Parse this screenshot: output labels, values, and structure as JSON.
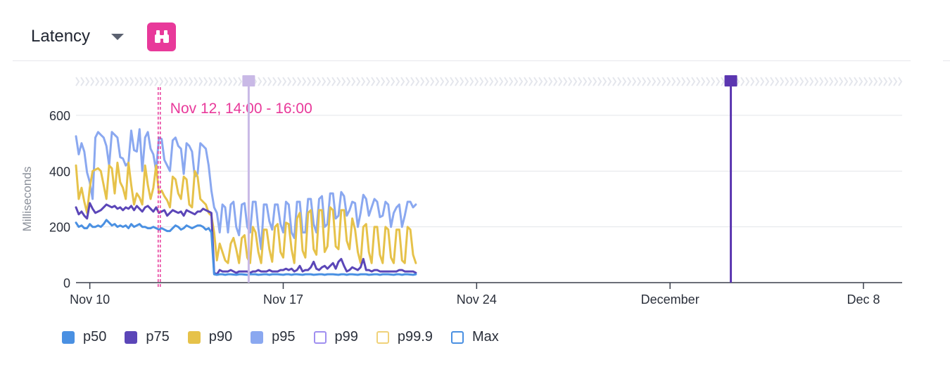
{
  "header": {
    "title": "Latency"
  },
  "annotation": {
    "label": "Nov 12, 14:00 - 16:00"
  },
  "colors": {
    "p50": "#4a90e2",
    "p75": "#5b46b8",
    "p90": "#e6c24a",
    "p95": "#8aa8f0",
    "p99": "#a08ff0",
    "p99_9": "#f0d27a",
    "max": "#4a90e2",
    "annotation": "#e8399a",
    "marker": "#5b36b0"
  },
  "legend": [
    {
      "label": "p50",
      "color": "#4a90e2",
      "filled": true
    },
    {
      "label": "p75",
      "color": "#5b46b8",
      "filled": true
    },
    {
      "label": "p90",
      "color": "#e6c24a",
      "filled": true
    },
    {
      "label": "p95",
      "color": "#8aa8f0",
      "filled": true
    },
    {
      "label": "p99",
      "color": "#a08ff0",
      "filled": false
    },
    {
      "label": "p99.9",
      "color": "#f0d27a",
      "filled": false
    },
    {
      "label": "Max",
      "color": "#4a90e2",
      "filled": false
    }
  ],
  "chart_data": {
    "type": "line",
    "title": "Latency",
    "ylabel": "Milliseconds",
    "xlabel": "",
    "ylim": [
      0,
      600
    ],
    "yticks": [
      0,
      200,
      400,
      600
    ],
    "xlim_days": [
      9.5,
      39.4
    ],
    "xticks": [
      {
        "label": "Nov 10",
        "day": 10
      },
      {
        "label": "Nov 17",
        "day": 17
      },
      {
        "label": "Nov 24",
        "day": 24
      },
      {
        "label": "December",
        "day": 31
      },
      {
        "label": "Dec 8",
        "day": 38
      }
    ],
    "annotation_range_days": [
      12.5,
      12.6
    ],
    "marker_days": [
      15.75,
      33.2
    ],
    "grid": true,
    "legend_position": "bottom-left",
    "series": [
      {
        "name": "p95",
        "day_start": 9.5,
        "step_days": 0.1,
        "values": [
          525,
          460,
          500,
          470,
          395,
          360,
          300,
          520,
          540,
          530,
          520,
          490,
          420,
          540,
          530,
          520,
          450,
          445,
          420,
          430,
          545,
          475,
          470,
          550,
          400,
          520,
          540,
          480,
          460,
          400,
          520,
          515,
          440,
          420,
          400,
          510,
          520,
          490,
          480,
          390,
          500,
          490,
          470,
          380,
          390,
          500,
          490,
          480,
          420,
          330,
          270,
          250,
          180,
          280,
          270,
          180,
          280,
          290,
          200,
          170,
          280,
          285,
          200,
          180,
          290,
          290,
          195,
          120,
          280,
          280,
          220,
          190,
          280,
          280,
          210,
          180,
          290,
          280,
          180,
          160,
          290,
          290,
          180,
          180,
          300,
          300,
          210,
          180,
          300,
          310,
          200,
          210,
          320,
          320,
          230,
          240,
          325,
          310,
          240,
          260,
          290,
          285,
          200,
          250,
          315,
          300,
          240,
          270,
          300,
          290,
          235,
          240,
          290,
          280,
          200,
          250,
          270,
          280,
          200,
          240,
          290,
          290,
          270,
          280
        ]
      },
      {
        "name": "p90",
        "day_start": 9.5,
        "step_days": 0.1,
        "values": [
          420,
          300,
          340,
          290,
          250,
          340,
          400,
          405,
          410,
          400,
          350,
          300,
          420,
          410,
          320,
          430,
          360,
          340,
          300,
          430,
          350,
          280,
          320,
          305,
          280,
          420,
          350,
          300,
          340,
          420,
          320,
          330,
          310,
          295,
          270,
          380,
          370,
          320,
          300,
          380,
          370,
          280,
          270,
          400,
          380,
          300,
          290,
          280,
          250,
          240,
          180,
          80,
          140,
          110,
          80,
          70,
          140,
          160,
          120,
          70,
          160,
          170,
          90,
          70,
          200,
          180,
          110,
          70,
          190,
          190,
          120,
          75,
          200,
          210,
          110,
          90,
          215,
          210,
          120,
          70,
          230,
          250,
          115,
          90,
          250,
          260,
          120,
          100,
          260,
          260,
          110,
          130,
          270,
          260,
          130,
          120,
          260,
          260,
          150,
          120,
          230,
          190,
          110,
          70,
          200,
          210,
          110,
          70,
          200,
          200,
          100,
          70,
          200,
          190,
          90,
          70,
          190,
          190,
          80,
          70,
          200,
          190,
          100,
          70
        ]
      },
      {
        "name": "p75",
        "day_start": 9.5,
        "step_days": 0.1,
        "values": [
          270,
          245,
          255,
          240,
          230,
          285,
          265,
          250,
          255,
          260,
          270,
          280,
          275,
          270,
          275,
          265,
          270,
          260,
          270,
          265,
          275,
          260,
          275,
          265,
          255,
          270,
          275,
          265,
          255,
          270,
          250,
          255,
          260,
          240,
          250,
          260,
          255,
          250,
          255,
          240,
          260,
          255,
          250,
          245,
          255,
          255,
          265,
          260,
          255,
          250,
          35,
          30,
          45,
          40,
          40,
          40,
          45,
          40,
          35,
          40,
          40,
          40,
          40,
          35,
          40,
          40,
          45,
          40,
          40,
          40,
          45,
          40,
          40,
          40,
          45,
          45,
          50,
          45,
          50,
          40,
          45,
          60,
          40,
          45,
          45,
          55,
          75,
          50,
          45,
          55,
          60,
          50,
          60,
          70,
          50,
          75,
          85,
          60,
          40,
          45,
          55,
          50,
          45,
          55,
          85,
          45,
          45,
          40,
          45,
          45,
          40,
          40,
          40,
          40,
          40,
          40,
          40,
          45,
          45,
          40,
          40,
          40,
          40,
          35
        ]
      },
      {
        "name": "p50",
        "day_start": 9.5,
        "step_days": 0.1,
        "values": [
          215,
          200,
          205,
          195,
          195,
          210,
          200,
          200,
          205,
          200,
          210,
          225,
          215,
          205,
          210,
          200,
          205,
          200,
          205,
          195,
          210,
          200,
          205,
          210,
          200,
          200,
          195,
          195,
          200,
          195,
          190,
          195,
          190,
          185,
          185,
          195,
          205,
          200,
          190,
          195,
          205,
          200,
          195,
          200,
          205,
          205,
          200,
          190,
          195,
          180,
          30,
          28,
          30,
          30,
          28,
          30,
          30,
          29,
          28,
          30,
          30,
          29,
          28,
          30,
          30,
          30,
          28,
          29,
          30,
          30,
          28,
          30,
          30,
          30,
          29,
          28,
          30,
          30,
          28,
          30,
          30,
          29,
          28,
          30,
          30,
          30,
          28,
          29,
          30,
          30,
          28,
          30,
          30,
          30,
          29,
          28,
          30,
          30,
          28,
          30,
          30,
          29,
          28,
          30,
          30,
          30,
          28,
          29,
          30,
          30,
          28,
          30,
          30,
          30,
          29,
          28,
          30,
          30,
          28,
          30,
          30,
          29,
          28,
          30
        ]
      }
    ]
  }
}
